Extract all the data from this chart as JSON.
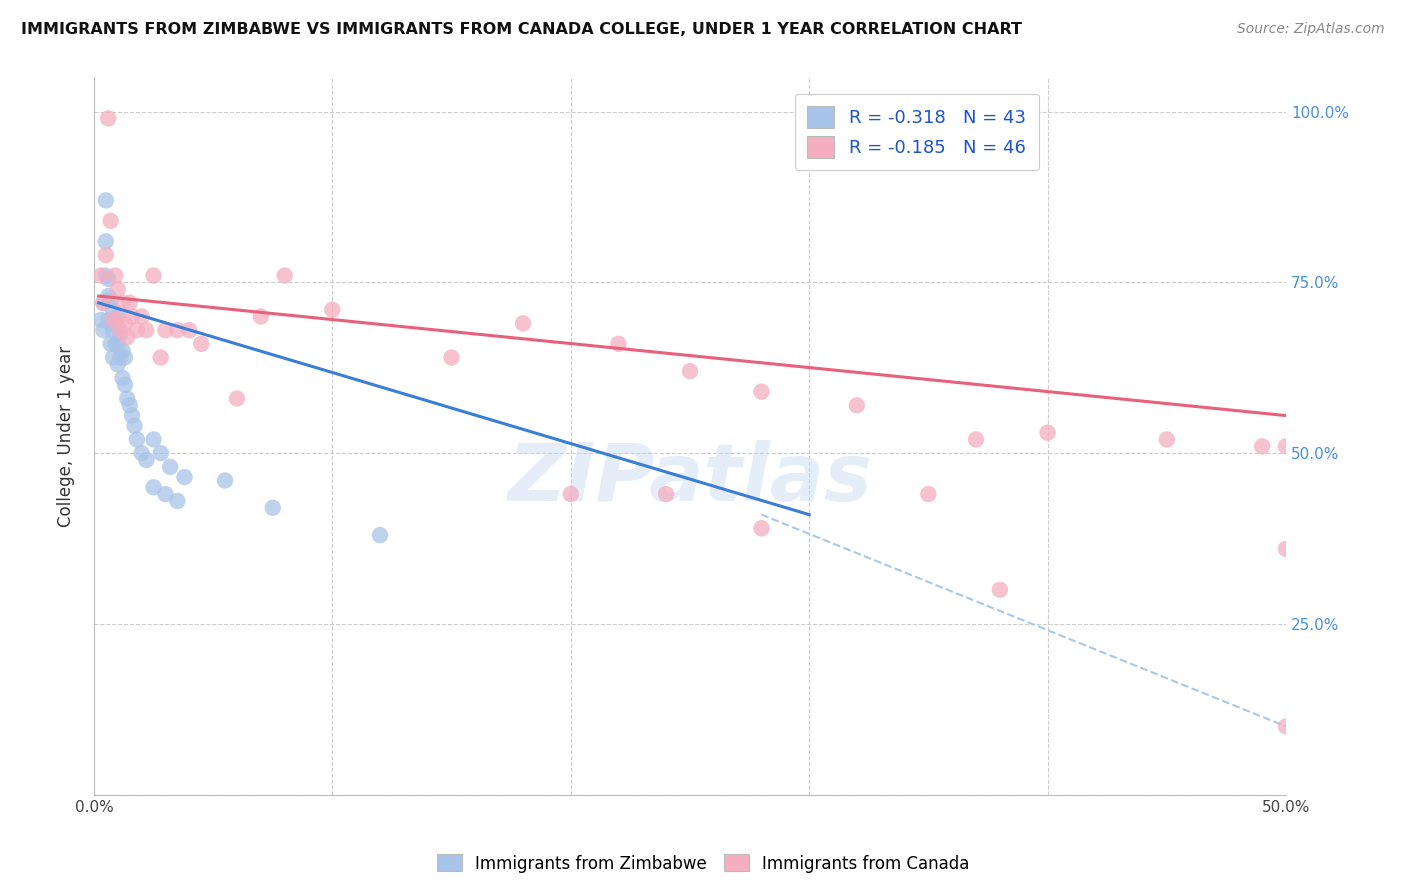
{
  "title": "IMMIGRANTS FROM ZIMBABWE VS IMMIGRANTS FROM CANADA COLLEGE, UNDER 1 YEAR CORRELATION CHART",
  "source": "Source: ZipAtlas.com",
  "ylabel_label": "College, Under 1 year",
  "x_min": 0.0,
  "x_max": 0.5,
  "y_min": 0.0,
  "y_max": 1.05,
  "x_ticks": [
    0.0,
    0.1,
    0.2,
    0.3,
    0.4,
    0.5
  ],
  "x_tick_labels": [
    "0.0%",
    "",
    "",
    "",
    "",
    "50.0%"
  ],
  "y_ticks": [
    0.0,
    0.25,
    0.5,
    0.75,
    1.0
  ],
  "y_tick_labels_right": [
    "",
    "25.0%",
    "50.0%",
    "75.0%",
    "100.0%"
  ],
  "legend_text_blue": "R = -0.318   N = 43",
  "legend_text_pink": "R = -0.185   N = 46",
  "watermark": "ZIPatlas",
  "blue_color": "#a8c4e8",
  "pink_color": "#f5aec0",
  "blue_line_color": "#3a7fd5",
  "pink_line_color": "#e8607a",
  "dashed_line_color": "#a8c8e8",
  "zimbabwe_scatter_x": [
    0.003,
    0.004,
    0.004,
    0.005,
    0.005,
    0.005,
    0.006,
    0.006,
    0.006,
    0.007,
    0.007,
    0.007,
    0.008,
    0.008,
    0.008,
    0.009,
    0.009,
    0.01,
    0.01,
    0.01,
    0.011,
    0.011,
    0.012,
    0.012,
    0.013,
    0.013,
    0.014,
    0.015,
    0.016,
    0.017,
    0.018,
    0.02,
    0.022,
    0.025,
    0.028,
    0.032,
    0.038,
    0.055,
    0.075,
    0.12,
    0.025,
    0.03,
    0.035
  ],
  "zimbabwe_scatter_y": [
    0.695,
    0.72,
    0.68,
    0.87,
    0.81,
    0.76,
    0.755,
    0.73,
    0.695,
    0.725,
    0.69,
    0.66,
    0.71,
    0.68,
    0.64,
    0.695,
    0.66,
    0.7,
    0.66,
    0.63,
    0.675,
    0.64,
    0.65,
    0.61,
    0.64,
    0.6,
    0.58,
    0.57,
    0.555,
    0.54,
    0.52,
    0.5,
    0.49,
    0.52,
    0.5,
    0.48,
    0.465,
    0.46,
    0.42,
    0.38,
    0.45,
    0.44,
    0.43
  ],
  "canada_scatter_x": [
    0.003,
    0.004,
    0.005,
    0.006,
    0.007,
    0.008,
    0.009,
    0.01,
    0.01,
    0.011,
    0.012,
    0.013,
    0.014,
    0.015,
    0.016,
    0.018,
    0.02,
    0.022,
    0.025,
    0.028,
    0.03,
    0.035,
    0.04,
    0.045,
    0.06,
    0.07,
    0.08,
    0.1,
    0.15,
    0.18,
    0.22,
    0.25,
    0.28,
    0.32,
    0.37,
    0.4,
    0.45,
    0.49,
    0.5,
    0.5,
    0.24,
    0.38,
    0.5,
    0.2,
    0.35,
    0.28
  ],
  "canada_scatter_y": [
    0.76,
    0.72,
    0.79,
    0.99,
    0.84,
    0.695,
    0.76,
    0.74,
    0.695,
    0.68,
    0.72,
    0.69,
    0.67,
    0.72,
    0.7,
    0.68,
    0.7,
    0.68,
    0.76,
    0.64,
    0.68,
    0.68,
    0.68,
    0.66,
    0.58,
    0.7,
    0.76,
    0.71,
    0.64,
    0.69,
    0.66,
    0.62,
    0.59,
    0.57,
    0.52,
    0.53,
    0.52,
    0.51,
    0.51,
    0.36,
    0.44,
    0.3,
    0.1,
    0.44,
    0.44,
    0.39
  ],
  "blue_line_x": [
    0.002,
    0.3
  ],
  "blue_line_y": [
    0.72,
    0.41
  ],
  "pink_line_x": [
    0.002,
    0.5
  ],
  "pink_line_y": [
    0.73,
    0.555
  ],
  "dashed_line_x": [
    0.28,
    0.5
  ],
  "dashed_line_y": [
    0.41,
    0.1
  ]
}
